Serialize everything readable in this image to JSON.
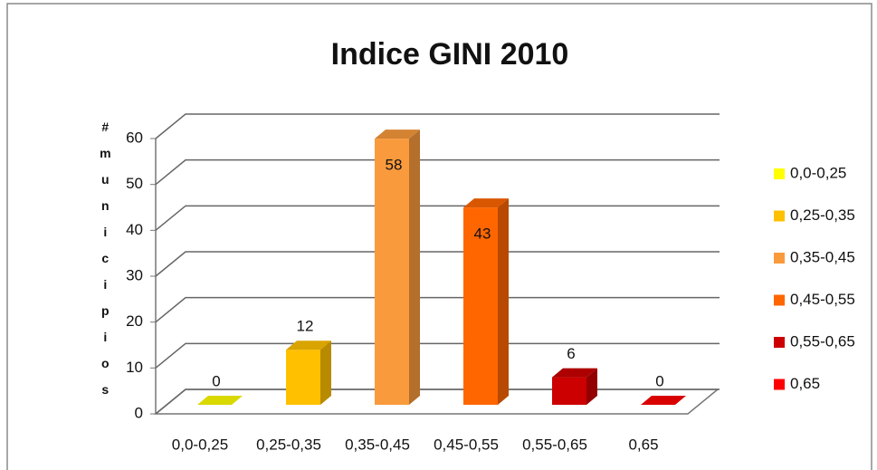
{
  "chart_data": {
    "type": "bar3d",
    "title": "Indice GINI 2010",
    "y_label": "#municipios",
    "categories": [
      "0,0-0,25",
      "0,25-0,35",
      "0,35-0,45",
      "0,45-0,55",
      "0,55-0,65",
      "0,65"
    ],
    "values": [
      0,
      12,
      58,
      43,
      6,
      0
    ],
    "colors": [
      "#ffff00",
      "#ffc000",
      "#f99a3c",
      "#ff6600",
      "#cc0000",
      "#ff0000"
    ],
    "ylim": [
      0,
      60
    ],
    "yticks": [
      0,
      10,
      20,
      30,
      40,
      50,
      60
    ],
    "grid": true,
    "legend": "right"
  }
}
